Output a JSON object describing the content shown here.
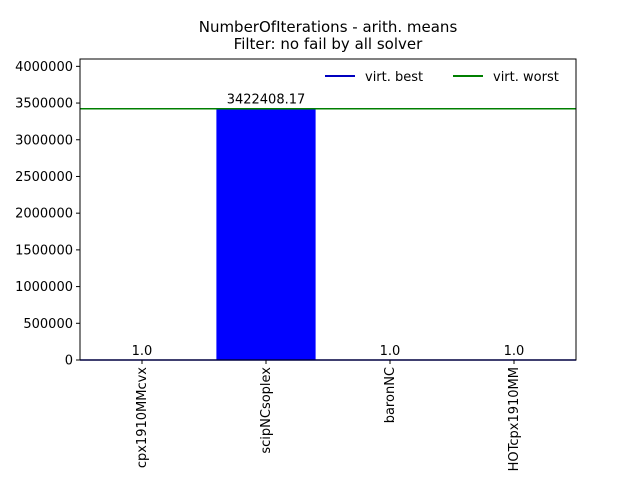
{
  "chart_data": {
    "type": "bar",
    "title": "NumberOfIterations - arith. means",
    "subtitle": "Filter: no fail by all solver",
    "xlabel": "",
    "ylabel": "",
    "categories": [
      "cpx1910MMcvx",
      "scipNCsoplex",
      "baronNC",
      "HOTcpx1910MM"
    ],
    "values": [
      1.0,
      3422408.17,
      1.0,
      1.0
    ],
    "data_labels": [
      "1.0",
      "3422408.17",
      "1.0",
      "1.0"
    ],
    "ylim": [
      0,
      4100000
    ],
    "yticks": [
      0,
      500000,
      1000000,
      1500000,
      2000000,
      2500000,
      3000000,
      3500000,
      4000000
    ],
    "ytick_labels": [
      "0",
      "500000",
      "1000000",
      "1500000",
      "2000000",
      "2500000",
      "3000000",
      "3500000",
      "4000000"
    ],
    "bar_color": "#0000ff",
    "reference_lines": [
      {
        "name": "virt. best",
        "value": 1.0,
        "color": "#0000bf"
      },
      {
        "name": "virt. worst",
        "value": 3422408.17,
        "color": "#007f00"
      }
    ],
    "legend": {
      "placement": "top-right",
      "frame": false
    },
    "grid": false
  }
}
